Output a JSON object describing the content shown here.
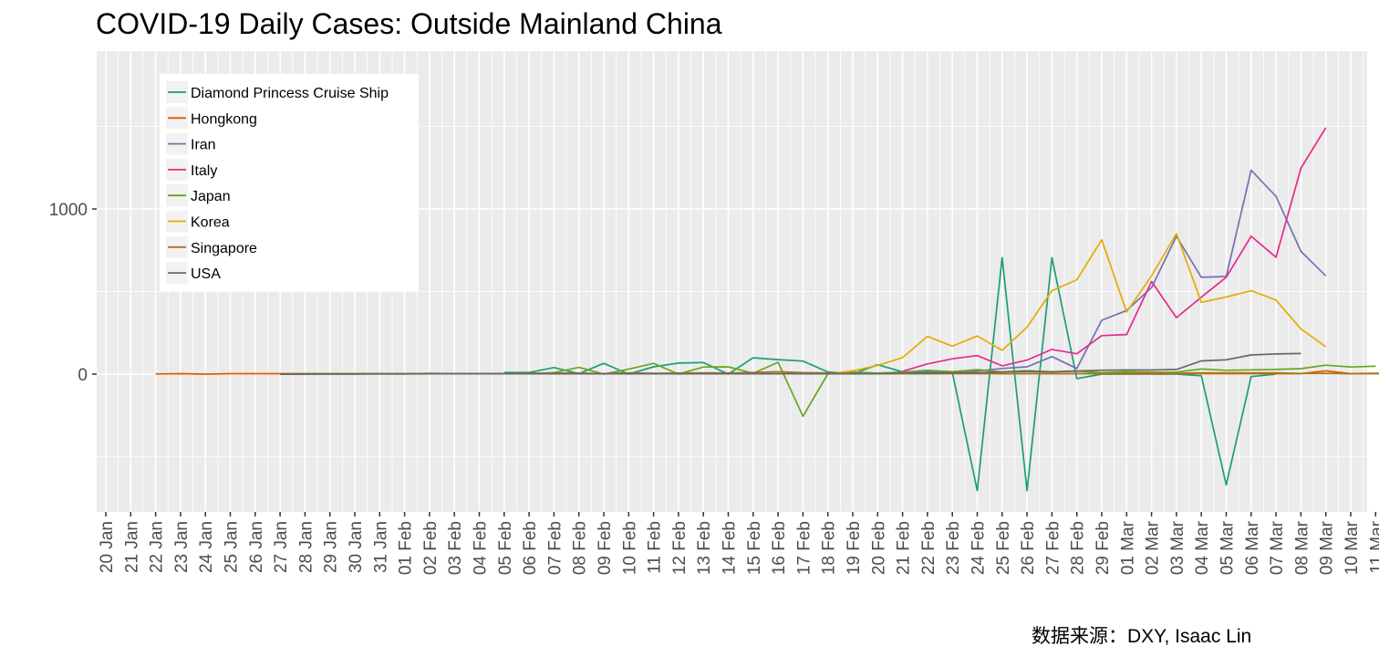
{
  "chart_data": {
    "type": "line",
    "title": "COVID-19 Daily Cases: Outside Mainland China",
    "xlabel": "",
    "ylabel": "",
    "caption": "数据来源：DXY, Isaac Lin",
    "x_ticks": [
      "20 Jan",
      "21 Jan",
      "22 Jan",
      "23 Jan",
      "24 Jan",
      "25 Jan",
      "26 Jan",
      "27 Jan",
      "28 Jan",
      "29 Jan",
      "30 Jan",
      "31 Jan",
      "01 Feb",
      "02 Feb",
      "03 Feb",
      "04 Feb",
      "05 Feb",
      "06 Feb",
      "07 Feb",
      "08 Feb",
      "09 Feb",
      "10 Feb",
      "11 Feb",
      "12 Feb",
      "13 Feb",
      "14 Feb",
      "15 Feb",
      "16 Feb",
      "17 Feb",
      "18 Feb",
      "19 Feb",
      "20 Feb",
      "21 Feb",
      "22 Feb",
      "23 Feb",
      "24 Feb",
      "25 Feb",
      "26 Feb",
      "27 Feb",
      "28 Feb",
      "29 Feb",
      "01 Mar",
      "02 Mar",
      "03 Mar",
      "04 Mar",
      "05 Mar",
      "06 Mar",
      "07 Mar",
      "08 Mar",
      "09 Mar",
      "10 Mar",
      "11 Mar"
    ],
    "y_ticks": [
      0,
      1000
    ],
    "ylim": [
      -830,
      1850
    ],
    "grid": true,
    "legend_position": "top-left",
    "series": [
      {
        "name": "Diamond Princess Cruise Ship",
        "color": "#1b9e77",
        "start": "05 Feb",
        "values": [
          10,
          10,
          40,
          3,
          65,
          0,
          44,
          67,
          70,
          0,
          99,
          88,
          79,
          13,
          1,
          57,
          14,
          10,
          10,
          -705,
          705,
          -705,
          705,
          -27,
          0,
          0,
          0,
          0,
          -10,
          -670,
          -15,
          0
        ]
      },
      {
        "name": "Hongkong",
        "color": "#d95f02",
        "start": "22 Jan",
        "values": [
          1,
          3,
          0,
          3,
          3,
          3,
          3,
          2,
          2,
          2,
          3,
          2,
          2,
          3,
          3,
          3,
          3,
          3,
          3,
          3,
          3,
          3,
          3,
          3,
          3,
          3,
          3,
          3,
          3,
          3,
          3,
          3,
          3,
          3,
          3,
          3,
          3,
          3,
          3,
          3,
          3,
          3,
          3,
          3,
          3,
          3,
          3,
          20,
          3,
          5,
          3
        ]
      },
      {
        "name": "Iran",
        "color": "#7570b3",
        "start": "19 Feb",
        "values": [
          2,
          3,
          13,
          18,
          15,
          18,
          34,
          44,
          106,
          34,
          326,
          385,
          523,
          835,
          586,
          591,
          1234,
          1076,
          743,
          595
        ]
      },
      {
        "name": "Italy",
        "color": "#e7298a",
        "start": "21 Feb",
        "values": [
          17,
          62,
          93,
          112,
          50,
          85,
          150,
          123,
          233,
          240,
          561,
          342,
          466,
          587,
          835,
          708,
          1247,
          1492
        ]
      },
      {
        "name": "Japan",
        "color": "#66a61e",
        "start": "27 Jan",
        "values": [
          0,
          0,
          2,
          2,
          2,
          1,
          5,
          3,
          3,
          4,
          3,
          9,
          41,
          0,
          30,
          65,
          0,
          43,
          44,
          5,
          72,
          -255,
          1,
          12,
          6,
          12,
          23,
          15,
          27,
          13,
          21,
          14,
          19,
          9,
          14,
          11,
          12,
          31,
          23,
          26,
          28,
          33,
          54,
          43,
          48
        ]
      },
      {
        "name": "Korea",
        "color": "#e6ab02",
        "start": "18 Feb",
        "values": [
          1,
          20,
          53,
          100,
          229,
          169,
          231,
          144,
          284,
          505,
          571,
          813,
          376,
          595,
          851,
          435,
          467,
          505,
          448,
          274,
          165
        ]
      },
      {
        "name": "Singapore",
        "color": "#a6761d",
        "start": "27 Jan",
        "values": [
          0,
          2,
          3,
          3,
          3,
          3,
          2,
          2,
          2,
          2,
          6,
          6,
          6,
          4,
          8,
          5,
          6,
          8,
          7,
          10,
          15,
          9,
          7,
          2,
          3,
          4,
          3,
          5,
          8,
          2,
          3,
          2,
          4,
          2,
          5,
          6,
          5,
          8,
          8,
          8,
          8,
          4,
          5,
          2,
          3,
          4
        ]
      },
      {
        "name": "USA",
        "color": "#666666",
        "start": "27 Jan",
        "values": [
          0,
          0,
          0,
          0,
          1,
          1,
          2,
          2,
          2,
          2,
          2,
          2,
          2,
          2,
          2,
          2,
          2,
          2,
          2,
          2,
          2,
          2,
          2,
          2,
          2,
          5,
          5,
          8,
          8,
          14,
          16,
          14,
          19,
          24,
          25,
          25,
          28,
          80,
          87,
          116,
          122,
          125
        ]
      }
    ]
  }
}
